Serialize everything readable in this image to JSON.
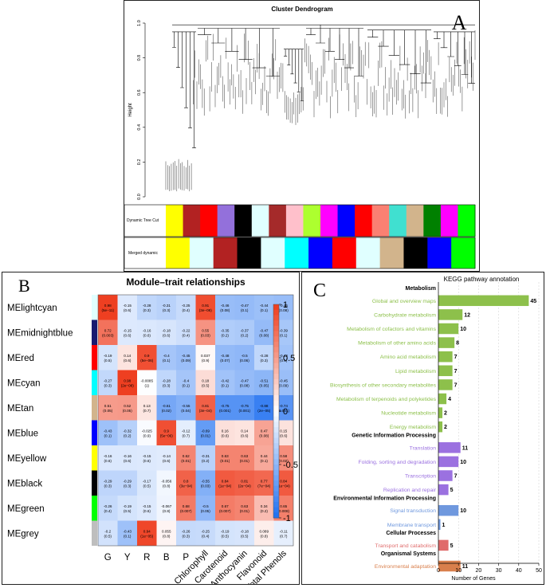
{
  "panels": {
    "A": {
      "letter": "A",
      "title": "Cluster Dendrogram",
      "ylabel": "Height",
      "yticks": [
        "1.0",
        "0.8",
        "0.6",
        "0.4",
        "0.2",
        "0.0"
      ],
      "ytick_values": [
        1.0,
        0.8,
        0.6,
        0.4,
        0.2,
        0.0
      ],
      "track_labels": [
        "Dynamic Tree Cut",
        "Merged dynamic"
      ]
    },
    "B": {
      "letter": "B",
      "title": "Module–trait relationships",
      "colorbar_ticks": [
        "1",
        "0.5",
        "0",
        "-0.5",
        "-1"
      ]
    },
    "C": {
      "letter": "C",
      "title": "KEGG pathway annotation",
      "xlabel": "Number of Genes",
      "xticks": [
        "0",
        "10",
        "20",
        "30",
        "40",
        "50"
      ]
    }
  },
  "chart_data": [
    {
      "type": "dendrogram",
      "title": "Cluster Dendrogram",
      "ylabel": "Height",
      "ylim": [
        0,
        1.0
      ],
      "tracks": [
        {
          "name": "Dynamic Tree Cut",
          "colors": [
            "#ffff00",
            "#b22222",
            "#ff0000",
            "#9370db",
            "#000000",
            "#e0ffff",
            "#a52a2a",
            "#ffc0cb",
            "#adff2f",
            "#ff00ff",
            "#0000ff",
            "#ff0000",
            "#fa8072",
            "#40e0d0",
            "#d2b48c",
            "#008000",
            "#ff00ff",
            "#00ff00"
          ]
        },
        {
          "name": "Merged dynamic",
          "colors": [
            "#ffff00",
            "#e0ffff",
            "#b22222",
            "#000000",
            "#e0ffff",
            "#00ffff",
            "#0000ff",
            "#ff0000",
            "#e0ffff",
            "#d2b48c",
            "#000000",
            "#0000ff",
            "#00ff00"
          ]
        }
      ]
    },
    {
      "type": "heatmap",
      "title": "Module–trait relationships",
      "rows": [
        "MElightcyan",
        "MEmidnightblue",
        "MEred",
        "MEcyan",
        "MEtan",
        "MEblue",
        "MEyellow",
        "MEblack",
        "MEgreen",
        "MEgrey"
      ],
      "row_colors": [
        "#e0ffff",
        "#191970",
        "#ff0000",
        "#00ffff",
        "#d2b48c",
        "#0000ff",
        "#ffff00",
        "#000000",
        "#00ff00",
        "#bebebe"
      ],
      "columns": [
        "G",
        "Y",
        "R",
        "B",
        "P",
        "Chlorophyll",
        "Carotenoid",
        "Anthocyanin",
        "Flavonoid",
        "Total Phenols"
      ],
      "values": [
        [
          0.98,
          -0.15,
          -0.28,
          -0.31,
          -0.25,
          0.91,
          -0.46,
          -0.47,
          -0.44,
          -0.46
        ],
        [
          0.72,
          -0.15,
          -0.16,
          -0.18,
          -0.22,
          0.55,
          -0.35,
          -0.37,
          -0.47,
          -0.39
        ],
        [
          -0.19,
          0.14,
          0.9,
          -0.4,
          -0.45,
          0.037,
          -0.48,
          -0.5,
          -0.28,
          -0.42
        ],
        [
          -0.27,
          0.98,
          -0.0085,
          -0.28,
          -0.4,
          0.18,
          -0.42,
          -0.47,
          -0.51,
          -0.45
        ],
        [
          0.51,
          0.52,
          0.13,
          -0.61,
          -0.55,
          0.81,
          -0.75,
          -0.75,
          -0.88,
          -0.74
        ],
        [
          -0.43,
          -0.32,
          -0.025,
          0.9,
          -0.12,
          -0.69,
          0.16,
          0.14,
          0.47,
          0.15
        ],
        [
          -0.16,
          -0.16,
          -0.15,
          -0.14,
          0.62,
          -0.31,
          0.63,
          0.63,
          0.44,
          0.58
        ],
        [
          -0.29,
          -0.29,
          -0.17,
          -0.056,
          0.8,
          -0.55,
          0.84,
          0.81,
          0.77,
          0.84
        ],
        [
          -0.26,
          -0.19,
          -0.15,
          -0.067,
          0.68,
          -0.5,
          0.67,
          0.63,
          0.34,
          0.65
        ],
        [
          -0.2,
          -0.43,
          0.94,
          0.055,
          -0.26,
          -0.25,
          -0.19,
          -0.18,
          0.089,
          -0.11
        ]
      ],
      "pvalues": [
        [
          "(5e−11)",
          "(0.6)",
          "(0.3)",
          "(0.3)",
          "(0.4)",
          "(3e−08)",
          "(0.08)",
          "(0.1)",
          "(0.1)",
          "(0.08)"
        ],
        [
          "(0.003)",
          "(0.6)",
          "(0.6)",
          "(0.6)",
          "(0.4)",
          "(0.03)",
          "(0.2)",
          "(0.2)",
          "(0.08)",
          "(0.1)"
        ],
        [
          "(0.5)",
          "(0.6)",
          "(5e−06)",
          "(0.1)",
          "(0.09)",
          "(0.9)",
          "(0.07)",
          "(0.06)",
          "(0.3)",
          "(0.1)"
        ],
        [
          "(0.3)",
          "(2e−08)",
          "(1)",
          "(0.3)",
          "(0.1)",
          "(0.5)",
          "(0.1)",
          "(0.08)",
          "(0.05)",
          "(0.09)"
        ],
        [
          "(0.05)",
          "(0.05)",
          "(0.7)",
          "(0.02)",
          "(0.04)",
          "(3e−04)",
          "(0.001)",
          "(0.001)",
          "(2e−05)",
          "(0.001)"
        ],
        [
          "(0.1)",
          "(0.2)",
          "(0.9)",
          "(5e−06)",
          "(0.7)",
          "(0.01)",
          "(0.6)",
          "(0.6)",
          "(0.08)",
          "(0.6)"
        ],
        [
          "(0.6)",
          "(0.6)",
          "(0.6)",
          "(0.6)",
          "(0.01)",
          "(0.2)",
          "(0.01)",
          "(0.01)",
          "(0.1)",
          "(0.02)"
        ],
        [
          "(0.3)",
          "(0.3)",
          "(0.5)",
          "(0.8)",
          "(3e−04)",
          "(0.03)",
          "(1e−04)",
          "(2e−04)",
          "(7e−04)",
          "(1e−04)"
        ],
        [
          "(0.4)",
          "(0.5)",
          "(0.6)",
          "(0.8)",
          "(0.007)",
          "(0.05)",
          "(0.007)",
          "(0.01)",
          "(0.2)",
          "(0.008)"
        ],
        [
          "(0.5)",
          "(0.1)",
          "(1e−05)",
          "(0.8)",
          "(0.3)",
          "(0.4)",
          "(0.5)",
          "(0.5)",
          "(0.8)",
          "(0.7)"
        ]
      ],
      "colorscale": {
        "min": -1,
        "max": 1,
        "low": "#1e6ff0",
        "mid": "#ffffff",
        "high": "#ee3b1c"
      }
    },
    {
      "type": "bar",
      "orientation": "horizontal",
      "title": "KEGG pathway annotation",
      "xlabel": "Number of Genes",
      "xlim": [
        0,
        50
      ],
      "groups": [
        {
          "name": "Metabolism",
          "color": "#8dc04b",
          "items": [
            {
              "label": "Global and overview maps",
              "value": 45
            },
            {
              "label": "Carbohydrate metabolism",
              "value": 12
            },
            {
              "label": "Metabolism of cofactors and vitamins",
              "value": 10
            },
            {
              "label": "Metabolism of other amino acids",
              "value": 8
            },
            {
              "label": "Amino acid metabolism",
              "value": 7
            },
            {
              "label": "Lipid metabolism",
              "value": 7
            },
            {
              "label": "Biosynthesis of other secondary metabolites",
              "value": 7
            },
            {
              "label": "Metabolism of terpenoids and polyketides",
              "value": 4
            },
            {
              "label": "Nucleotide metabolism",
              "value": 2
            },
            {
              "label": "Energy metabolism",
              "value": 2
            }
          ]
        },
        {
          "name": "Genetic Information Processing",
          "color": "#9b71e0",
          "items": [
            {
              "label": "Translation",
              "value": 11
            },
            {
              "label": "Folding, sorting and degradation",
              "value": 10
            },
            {
              "label": "Transcription",
              "value": 7
            },
            {
              "label": "Replication and repair",
              "value": 5
            }
          ]
        },
        {
          "name": "Environmental Information Processing",
          "color": "#6f98de",
          "items": [
            {
              "label": "Signal transduction",
              "value": 10
            },
            {
              "label": "Membrane transport",
              "value": 1
            }
          ]
        },
        {
          "name": "Cellular Processes",
          "color": "#e06b6b",
          "items": [
            {
              "label": "Transport and catabolism",
              "value": 5
            }
          ]
        },
        {
          "name": "Organismal Systems",
          "color": "#d97f4c",
          "items": [
            {
              "label": "Environmental adaptation",
              "value": 11
            }
          ]
        }
      ]
    }
  ]
}
